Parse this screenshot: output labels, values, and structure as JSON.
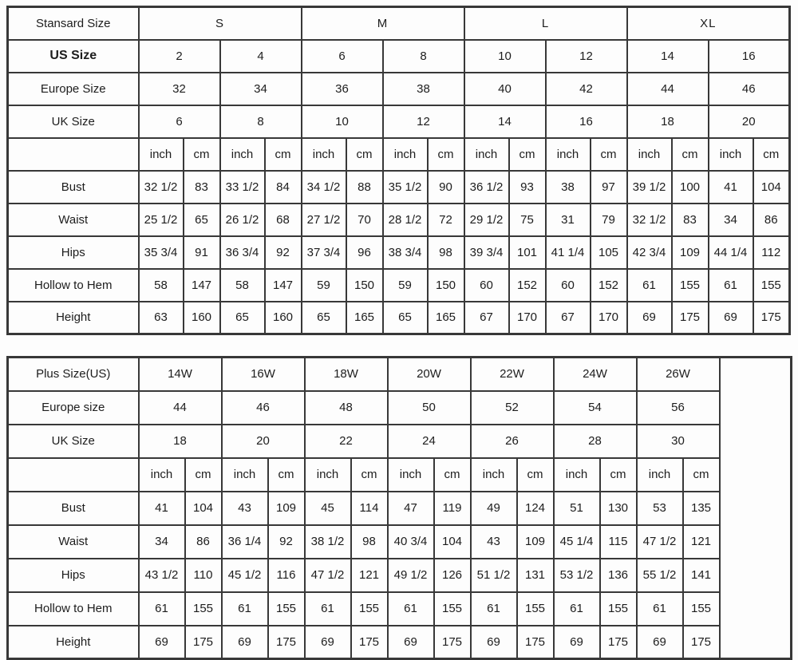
{
  "style": {
    "border_color": "#383838",
    "text_color": "#1d1d1d",
    "background": "#fdfdfd"
  },
  "chart_data": [
    {
      "type": "table",
      "name": "standard-size-chart",
      "corner_label": "Stansard Size",
      "groups_bold": true,
      "groups": [
        {
          "label": "S",
          "size_span": 2
        },
        {
          "label": "M",
          "size_span": 2
        },
        {
          "label": "L",
          "size_span": 2
        },
        {
          "label": "XL",
          "size_span": 2
        }
      ],
      "size_rows": [
        {
          "label": "US Size",
          "bold": true,
          "values": [
            "2",
            "4",
            "6",
            "8",
            "10",
            "12",
            "14",
            "16"
          ]
        },
        {
          "label": "Europe Size",
          "bold": false,
          "values": [
            "32",
            "34",
            "36",
            "38",
            "40",
            "42",
            "44",
            "46"
          ]
        },
        {
          "label": "UK Size",
          "bold": false,
          "values": [
            "6",
            "8",
            "10",
            "12",
            "14",
            "16",
            "18",
            "20"
          ]
        }
      ],
      "unit_labels": {
        "inch": "inch",
        "cm": "cm"
      },
      "measurement_rows": [
        {
          "label": "Bust",
          "values": [
            "32 1/2",
            "83",
            "33 1/2",
            "84",
            "34 1/2",
            "88",
            "35 1/2",
            "90",
            "36 1/2",
            "93",
            "38",
            "97",
            "39 1/2",
            "100",
            "41",
            "104"
          ]
        },
        {
          "label": "Waist",
          "values": [
            "25 1/2",
            "65",
            "26 1/2",
            "68",
            "27 1/2",
            "70",
            "28 1/2",
            "72",
            "29 1/2",
            "75",
            "31",
            "79",
            "32 1/2",
            "83",
            "34",
            "86"
          ]
        },
        {
          "label": "Hips",
          "values": [
            "35 3/4",
            "91",
            "36 3/4",
            "92",
            "37 3/4",
            "96",
            "38 3/4",
            "98",
            "39 3/4",
            "101",
            "41 1/4",
            "105",
            "42 3/4",
            "109",
            "44 1/4",
            "112"
          ]
        },
        {
          "label": "Hollow to Hem",
          "values": [
            "58",
            "147",
            "58",
            "147",
            "59",
            "150",
            "59",
            "150",
            "60",
            "152",
            "60",
            "152",
            "61",
            "155",
            "61",
            "155"
          ]
        },
        {
          "label": "Height",
          "values": [
            "63",
            "160",
            "65",
            "160",
            "65",
            "165",
            "65",
            "165",
            "67",
            "170",
            "67",
            "170",
            "69",
            "175",
            "69",
            "175"
          ]
        }
      ],
      "trailing_empty_column": false
    },
    {
      "type": "table",
      "name": "plus-size-chart",
      "corner_label": "Plus Size(US)",
      "groups_bold": false,
      "groups": [
        {
          "label": "14W",
          "size_span": 1
        },
        {
          "label": "16W",
          "size_span": 1
        },
        {
          "label": "18W",
          "size_span": 1
        },
        {
          "label": "20W",
          "size_span": 1
        },
        {
          "label": "22W",
          "size_span": 1
        },
        {
          "label": "24W",
          "size_span": 1
        },
        {
          "label": "26W",
          "size_span": 1
        }
      ],
      "size_rows": [
        {
          "label": "Europe size",
          "bold": false,
          "values": [
            "44",
            "46",
            "48",
            "50",
            "52",
            "54",
            "56"
          ]
        },
        {
          "label": "UK Size",
          "bold": false,
          "values": [
            "18",
            "20",
            "22",
            "24",
            "26",
            "28",
            "30"
          ]
        }
      ],
      "unit_labels": {
        "inch": "inch",
        "cm": "cm"
      },
      "measurement_rows": [
        {
          "label": "Bust",
          "values": [
            "41",
            "104",
            "43",
            "109",
            "45",
            "114",
            "47",
            "119",
            "49",
            "124",
            "51",
            "130",
            "53",
            "135"
          ]
        },
        {
          "label": "Waist",
          "values": [
            "34",
            "86",
            "36 1/4",
            "92",
            "38 1/2",
            "98",
            "40 3/4",
            "104",
            "43",
            "109",
            "45 1/4",
            "115",
            "47 1/2",
            "121"
          ]
        },
        {
          "label": "Hips",
          "values": [
            "43 1/2",
            "110",
            "45 1/2",
            "116",
            "47 1/2",
            "121",
            "49 1/2",
            "126",
            "51 1/2",
            "131",
            "53 1/2",
            "136",
            "55 1/2",
            "141"
          ]
        },
        {
          "label": "Hollow to Hem",
          "values": [
            "61",
            "155",
            "61",
            "155",
            "61",
            "155",
            "61",
            "155",
            "61",
            "155",
            "61",
            "155",
            "61",
            "155"
          ]
        },
        {
          "label": "Height",
          "values": [
            "69",
            "175",
            "69",
            "175",
            "69",
            "175",
            "69",
            "175",
            "69",
            "175",
            "69",
            "175",
            "69",
            "175"
          ]
        }
      ],
      "trailing_empty_column": true
    }
  ]
}
